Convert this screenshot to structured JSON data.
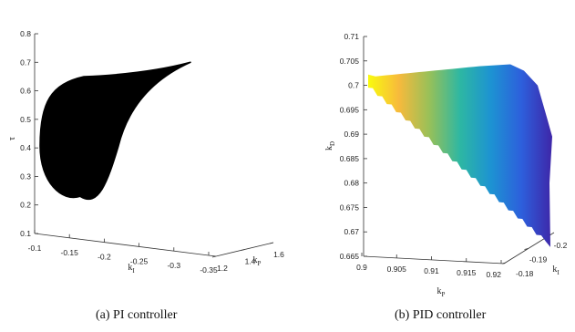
{
  "chart_data": [
    {
      "type": "scatter",
      "subplot": "(a)",
      "caption": "(a) PI controller",
      "view": "3D",
      "axes": {
        "x": {
          "label": "k",
          "sub": "I",
          "range": [
            -0.1,
            -0.35
          ],
          "ticks": [
            "-0.1",
            "-0.15",
            "-0.2",
            "-0.25",
            "-0.3",
            "-0.35"
          ]
        },
        "y": {
          "label": "k",
          "sub": "P",
          "range": [
            1.2,
            1.6
          ],
          "ticks": [
            "1.2",
            "1.4",
            "1.6"
          ]
        },
        "z": {
          "label": "τ",
          "sub": "",
          "range": [
            0.1,
            0.8
          ],
          "ticks": [
            "0.1",
            "0.2",
            "0.3",
            "0.4",
            "0.5",
            "0.6",
            "0.7",
            "0.8"
          ]
        }
      },
      "region": {
        "color": "#000000",
        "tau_min": 0.23,
        "tau_max": 0.7
      }
    },
    {
      "type": "scatter",
      "subplot": "(b)",
      "caption": "(b) PID controller",
      "view": "3D",
      "axes": {
        "x": {
          "label": "k",
          "sub": "P",
          "range": [
            0.9,
            0.92
          ],
          "ticks": [
            "0.9",
            "0.905",
            "0.91",
            "0.915",
            "0.92"
          ]
        },
        "y": {
          "label": "k",
          "sub": "I",
          "range": [
            -0.18,
            -0.2
          ],
          "ticks": [
            "-0.18",
            "-0.19",
            "-0.2"
          ]
        },
        "z": {
          "label": "k",
          "sub": "D",
          "range": [
            0.665,
            0.71
          ],
          "ticks": [
            "0.665",
            "0.67",
            "0.675",
            "0.68",
            "0.685",
            "0.69",
            "0.695",
            "0.7",
            "0.705",
            "0.71"
          ]
        }
      },
      "region": {
        "colormap": "parula",
        "colors": [
          "#f9fb0e",
          "#f7ba3c",
          "#97c059",
          "#2db7a3",
          "#1d93d2",
          "#2d5fdc",
          "#3e26a8"
        ],
        "kd_min": 0.668,
        "kd_max": 0.7045
      }
    }
  ]
}
